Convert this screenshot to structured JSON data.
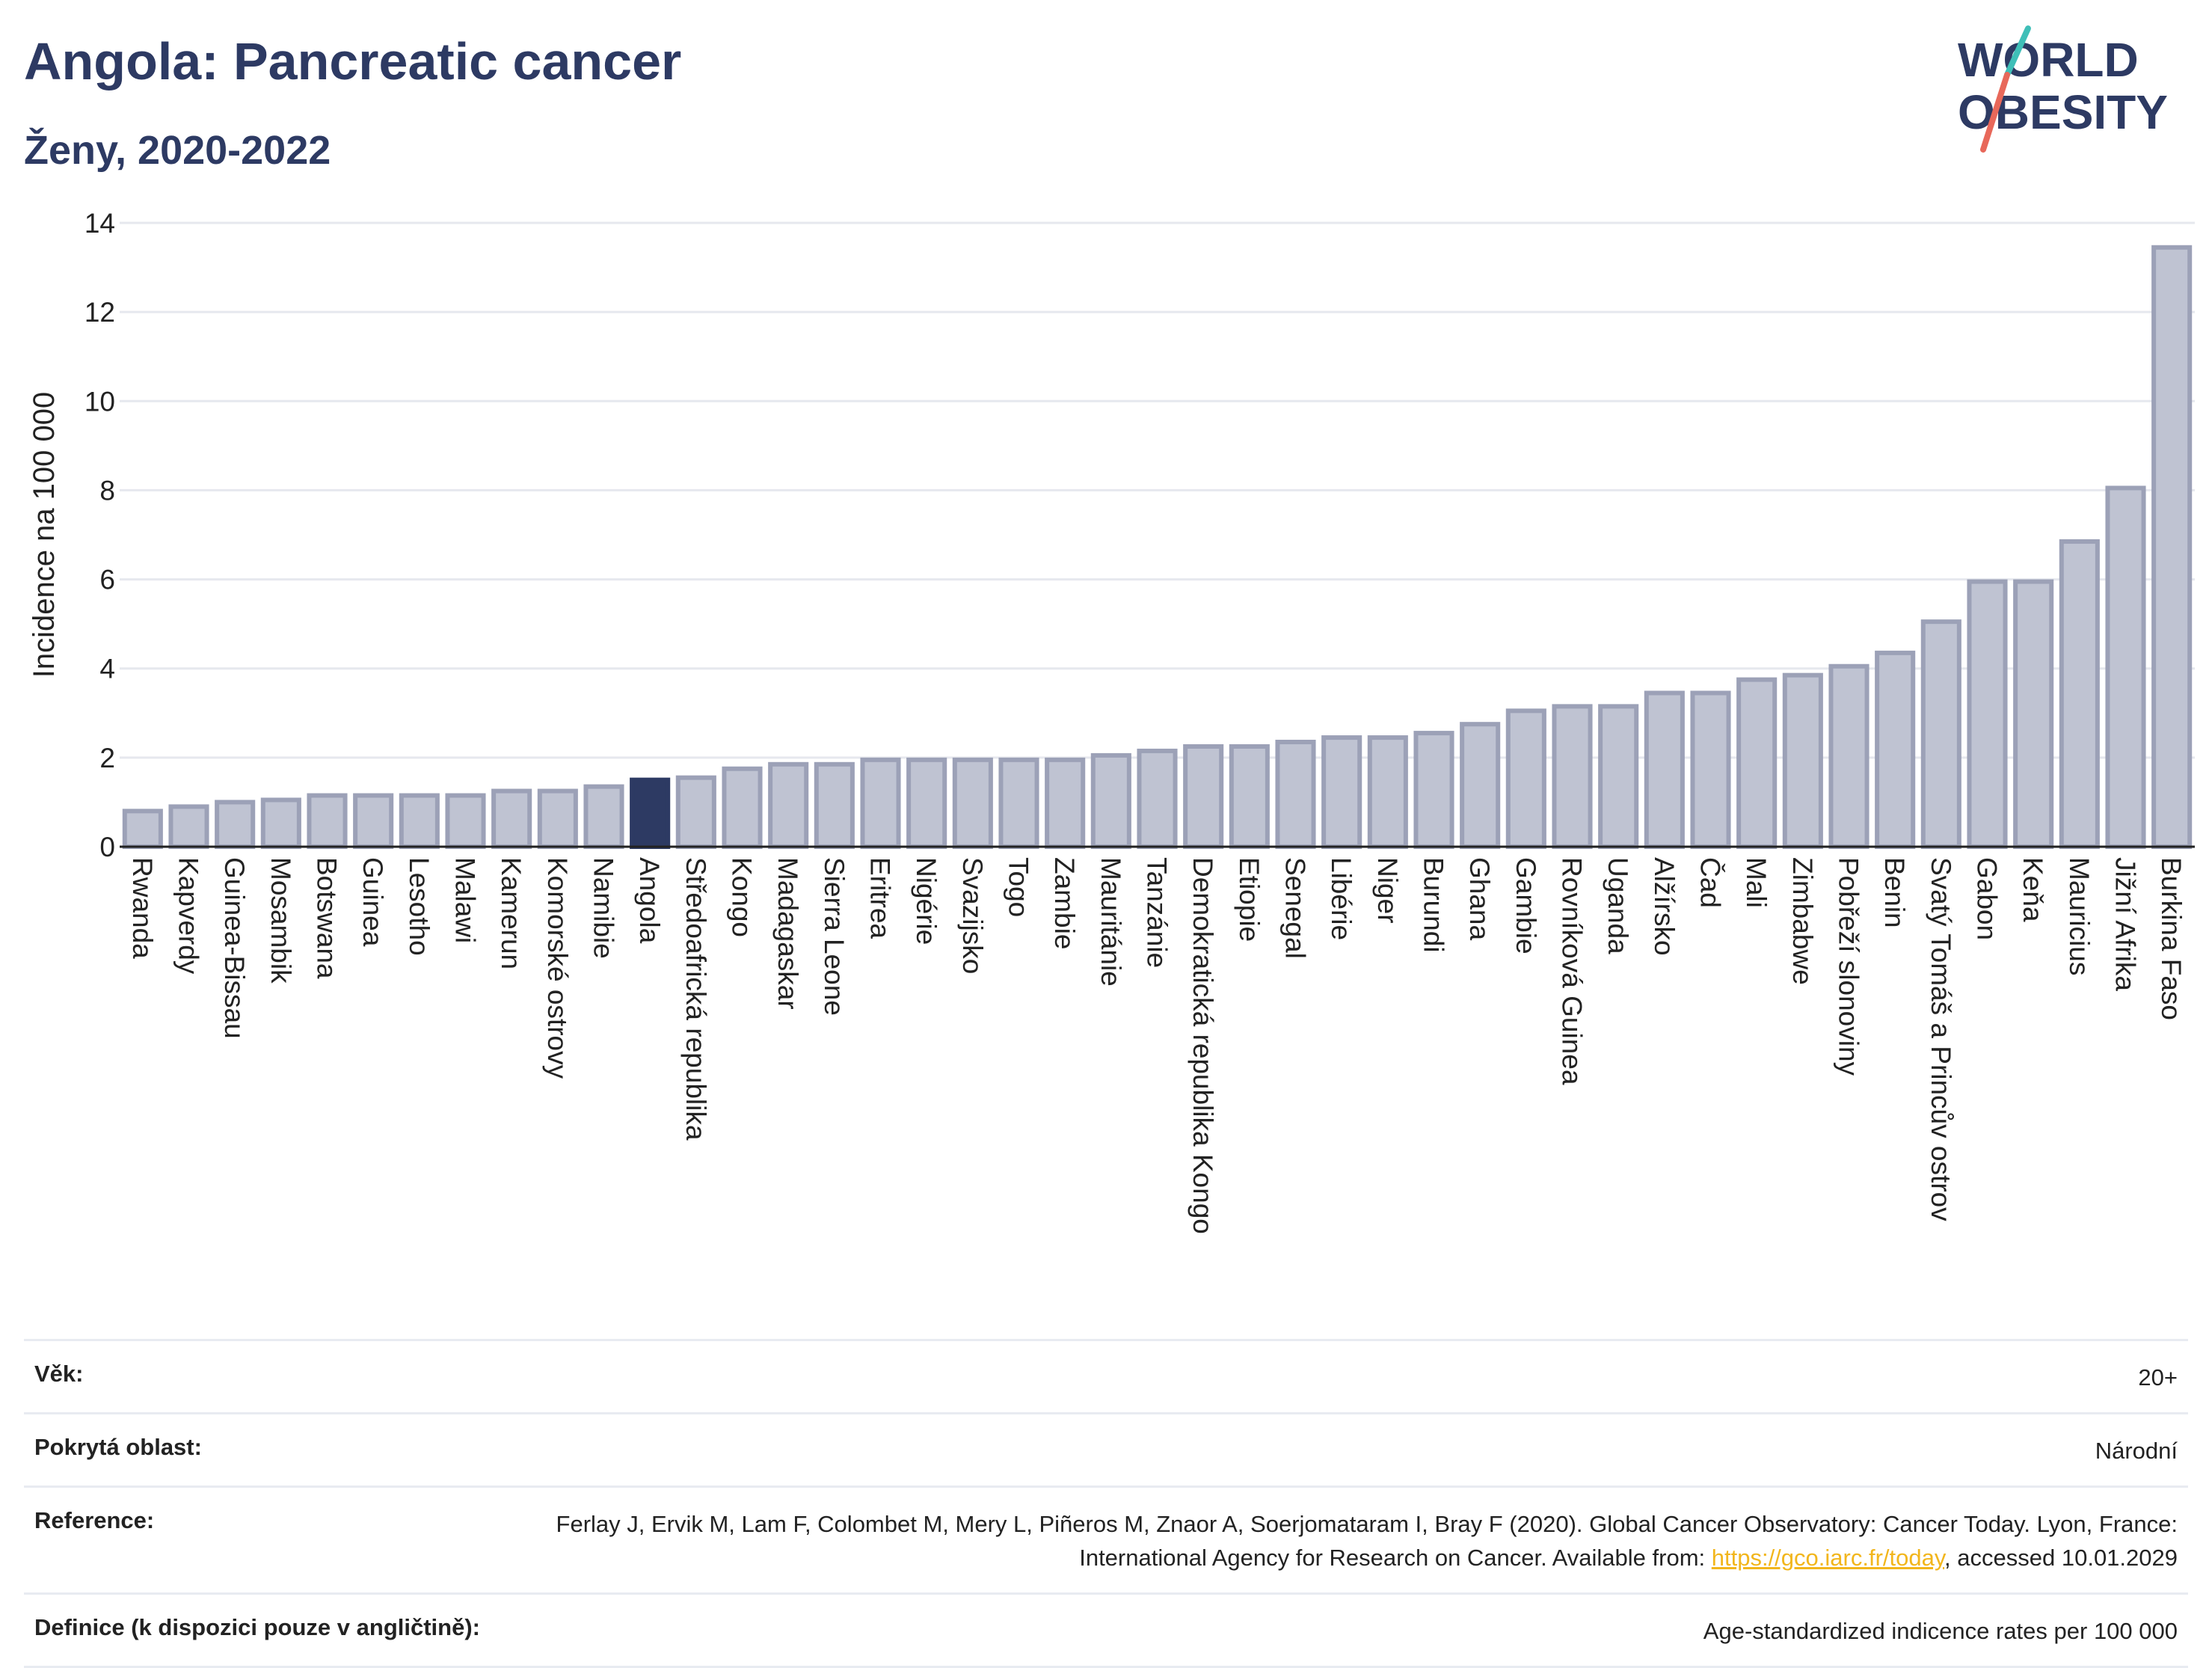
{
  "header": {
    "title": "Angola: Pancreatic cancer",
    "subtitle": "Ženy, 2020-2022",
    "logo_line1": "WORLD",
    "logo_line2": "OBESITY"
  },
  "colors": {
    "title": "#2d3a63",
    "bar_fill": "#bfc3d2",
    "bar_stroke": "#9ca1b7",
    "highlight": "#2d3a63",
    "link": "#f2b61c",
    "logo_teal": "#3fbfb8",
    "logo_coral": "#e8685a"
  },
  "chart_data": {
    "type": "bar",
    "ylabel": "Incidence na 100 000",
    "ylim": [
      0,
      14
    ],
    "yticks": [
      0,
      2,
      4,
      6,
      8,
      10,
      12,
      14
    ],
    "grid": true,
    "highlight": "Angola",
    "categories": [
      "Rwanda",
      "Kapverdy",
      "Guinea-Bissau",
      "Mosambik",
      "Botswana",
      "Guinea",
      "Lesotho",
      "Malawi",
      "Kamerun",
      "Komorské ostrovy",
      "Namibie",
      "Angola",
      "Středoafrická republika",
      "Kongo",
      "Madagaskar",
      "Sierra Leone",
      "Eritrea",
      "Nigérie",
      "Svazijsko",
      "Togo",
      "Zambie",
      "Mauritánie",
      "Tanzánie",
      "Demokratická republika Kongo",
      "Etiopie",
      "Senegal",
      "Libérie",
      "Niger",
      "Burundi",
      "Ghana",
      "Gambie",
      "Rovníková Guinea",
      "Uganda",
      "Alžírsko",
      "Čad",
      "Mali",
      "Zimbabwe",
      "Pobřeží slonoviny",
      "Benin",
      "Svatý Tomáš a Princův ostrov",
      "Gabon",
      "Keňa",
      "Mauricius",
      "Jižní Afrika",
      "Burkina Faso"
    ],
    "values": [
      0.8,
      0.9,
      1.0,
      1.05,
      1.15,
      1.15,
      1.15,
      1.15,
      1.25,
      1.25,
      1.35,
      1.5,
      1.55,
      1.75,
      1.85,
      1.85,
      1.95,
      1.95,
      1.95,
      1.95,
      1.95,
      2.05,
      2.15,
      2.25,
      2.25,
      2.35,
      2.45,
      2.45,
      2.55,
      2.75,
      3.05,
      3.15,
      3.15,
      3.45,
      3.45,
      3.75,
      3.85,
      4.05,
      4.35,
      5.05,
      5.95,
      5.95,
      6.85,
      8.05,
      13.45
    ]
  },
  "meta": {
    "age_label": "Věk:",
    "age_value": "20+",
    "area_label": "Pokrytá oblast:",
    "area_value": "Národní",
    "ref_label": "Reference:",
    "ref_text_1": "Ferlay J, Ervik M, Lam F, Colombet M, Mery L, Piñeros M, Znaor A, Soerjomataram I, Bray F (2020). Global Cancer Observatory: Cancer Today. Lyon, France: International Agency for Research on Cancer. Available from: ",
    "ref_link": "https://gco.iarc.fr/today",
    "ref_text_2": ", accessed 10.01.2029",
    "def_label": "Definice (k dispozici pouze v angličtině):",
    "def_value": "Age-standardized indicence rates per 100 000"
  }
}
